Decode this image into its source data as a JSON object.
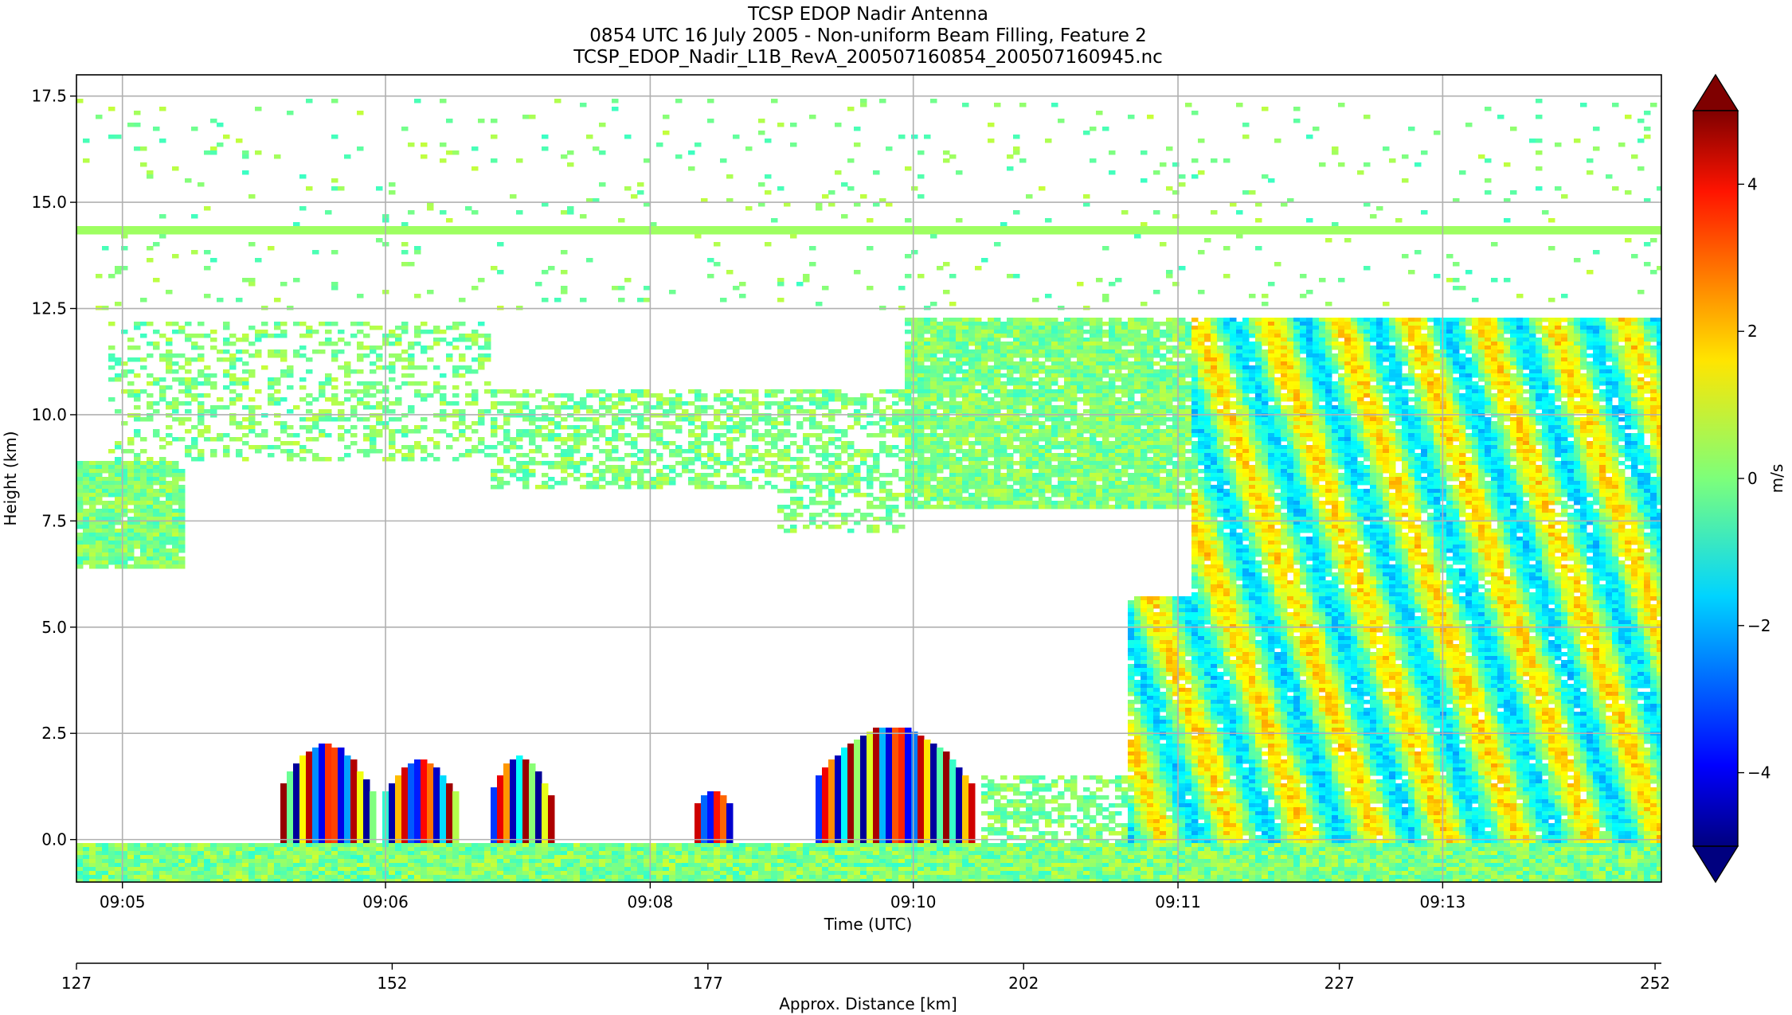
{
  "chart_data": {
    "type": "heatmap",
    "title_lines": [
      "TCSP EDOP Nadir Antenna",
      "0854 UTC 16 July 2005 - Non-uniform Beam Filling, Feature 2",
      "TCSP_EDOP_Nadir_L1B_RevA_200507160854_200507160945.nc"
    ],
    "xlabel": "Time (UTC)",
    "ylabel": "Height (km)",
    "ylim": [
      -1.0,
      18.0
    ],
    "yticks": [
      0.0,
      2.5,
      5.0,
      7.5,
      10.0,
      12.5,
      15.0,
      17.5
    ],
    "ytick_labels": [
      "0.0",
      "2.5",
      "5.0",
      "7.5",
      "10.0",
      "12.5",
      "15.0",
      "17.5"
    ],
    "time_ticks": [
      "09:05",
      "09:06",
      "09:08",
      "09:10",
      "09:11",
      "09:13"
    ],
    "grid": true,
    "secondary_axis": {
      "label": "Approx. Distance [km]",
      "xlim": [
        127,
        252.5
      ],
      "ticks": [
        127,
        152,
        177,
        202,
        227,
        252
      ],
      "tick_labels": [
        "127",
        "152",
        "177",
        "202",
        "227",
        "252"
      ]
    },
    "colorbar": {
      "label": "m/s",
      "colormap": "jet",
      "vmin": -5,
      "vmax": 5,
      "extend": "both",
      "ticks": [
        -4,
        -2,
        0,
        2,
        4
      ],
      "tick_labels": [
        "−4",
        "−2",
        "0",
        "2",
        "4"
      ]
    },
    "features": {
      "noise_band_height_km": 14.4,
      "surface_height_km": 0.0,
      "description_free": true
    }
  }
}
